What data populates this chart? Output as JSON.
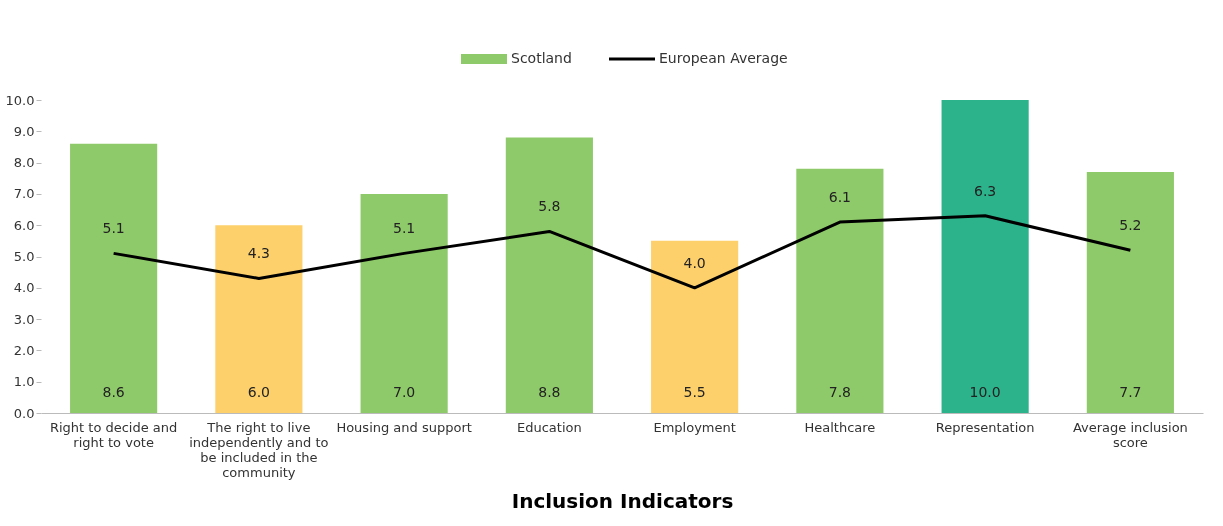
{
  "chart_data": {
    "type": "bar",
    "xlabel": "Inclusion Indicators",
    "categories": [
      "Right to decide and right to vote",
      "The right to live independently and to be included in the community",
      "Housing and support",
      "Education",
      "Employment",
      "Healthcare",
      "Representation",
      "Average inclusion score"
    ],
    "series": [
      {
        "name": "Scotland",
        "color": "#8fca6a",
        "value_labels": [
          "8.6",
          "6.0",
          "7.0",
          "8.8",
          "5.5",
          "7.8",
          "10.0",
          "7.7"
        ],
        "colors": [
          "#8fca6a",
          "#fdd06b",
          "#8fca6a",
          "#8fca6a",
          "#fdd06b",
          "#8fca6a",
          "#2db38b",
          "#8fca6a"
        ],
        "values": [
          8.6,
          6.0,
          7.0,
          8.8,
          5.5,
          7.8,
          10.0,
          7.7
        ]
      },
      {
        "name": "European Average",
        "type": "line",
        "color": "#000000",
        "value_labels": [
          "5.1",
          "4.3",
          "5.1",
          "5.8",
          "4.0",
          "6.1",
          "6.3",
          "5.2"
        ],
        "values": [
          5.1,
          4.3,
          5.1,
          5.8,
          4.0,
          6.1,
          6.3,
          5.2
        ]
      }
    ],
    "ylim": [
      0,
      10
    ],
    "yticks": [
      {
        "value": 0,
        "label": "0.0"
      },
      {
        "value": 1,
        "label": "1.0"
      },
      {
        "value": 2,
        "label": "2.0"
      },
      {
        "value": 3,
        "label": "3.0"
      },
      {
        "value": 4,
        "label": "4.0"
      },
      {
        "value": 5,
        "label": "5.0"
      },
      {
        "value": 6,
        "label": "6.0"
      },
      {
        "value": 7,
        "label": "7.0"
      },
      {
        "value": 8,
        "label": "8.0"
      },
      {
        "value": 9,
        "label": "9.0"
      },
      {
        "value": 10,
        "label": "10.0"
      }
    ],
    "grid": false,
    "legend": "top",
    "marker": "none"
  }
}
